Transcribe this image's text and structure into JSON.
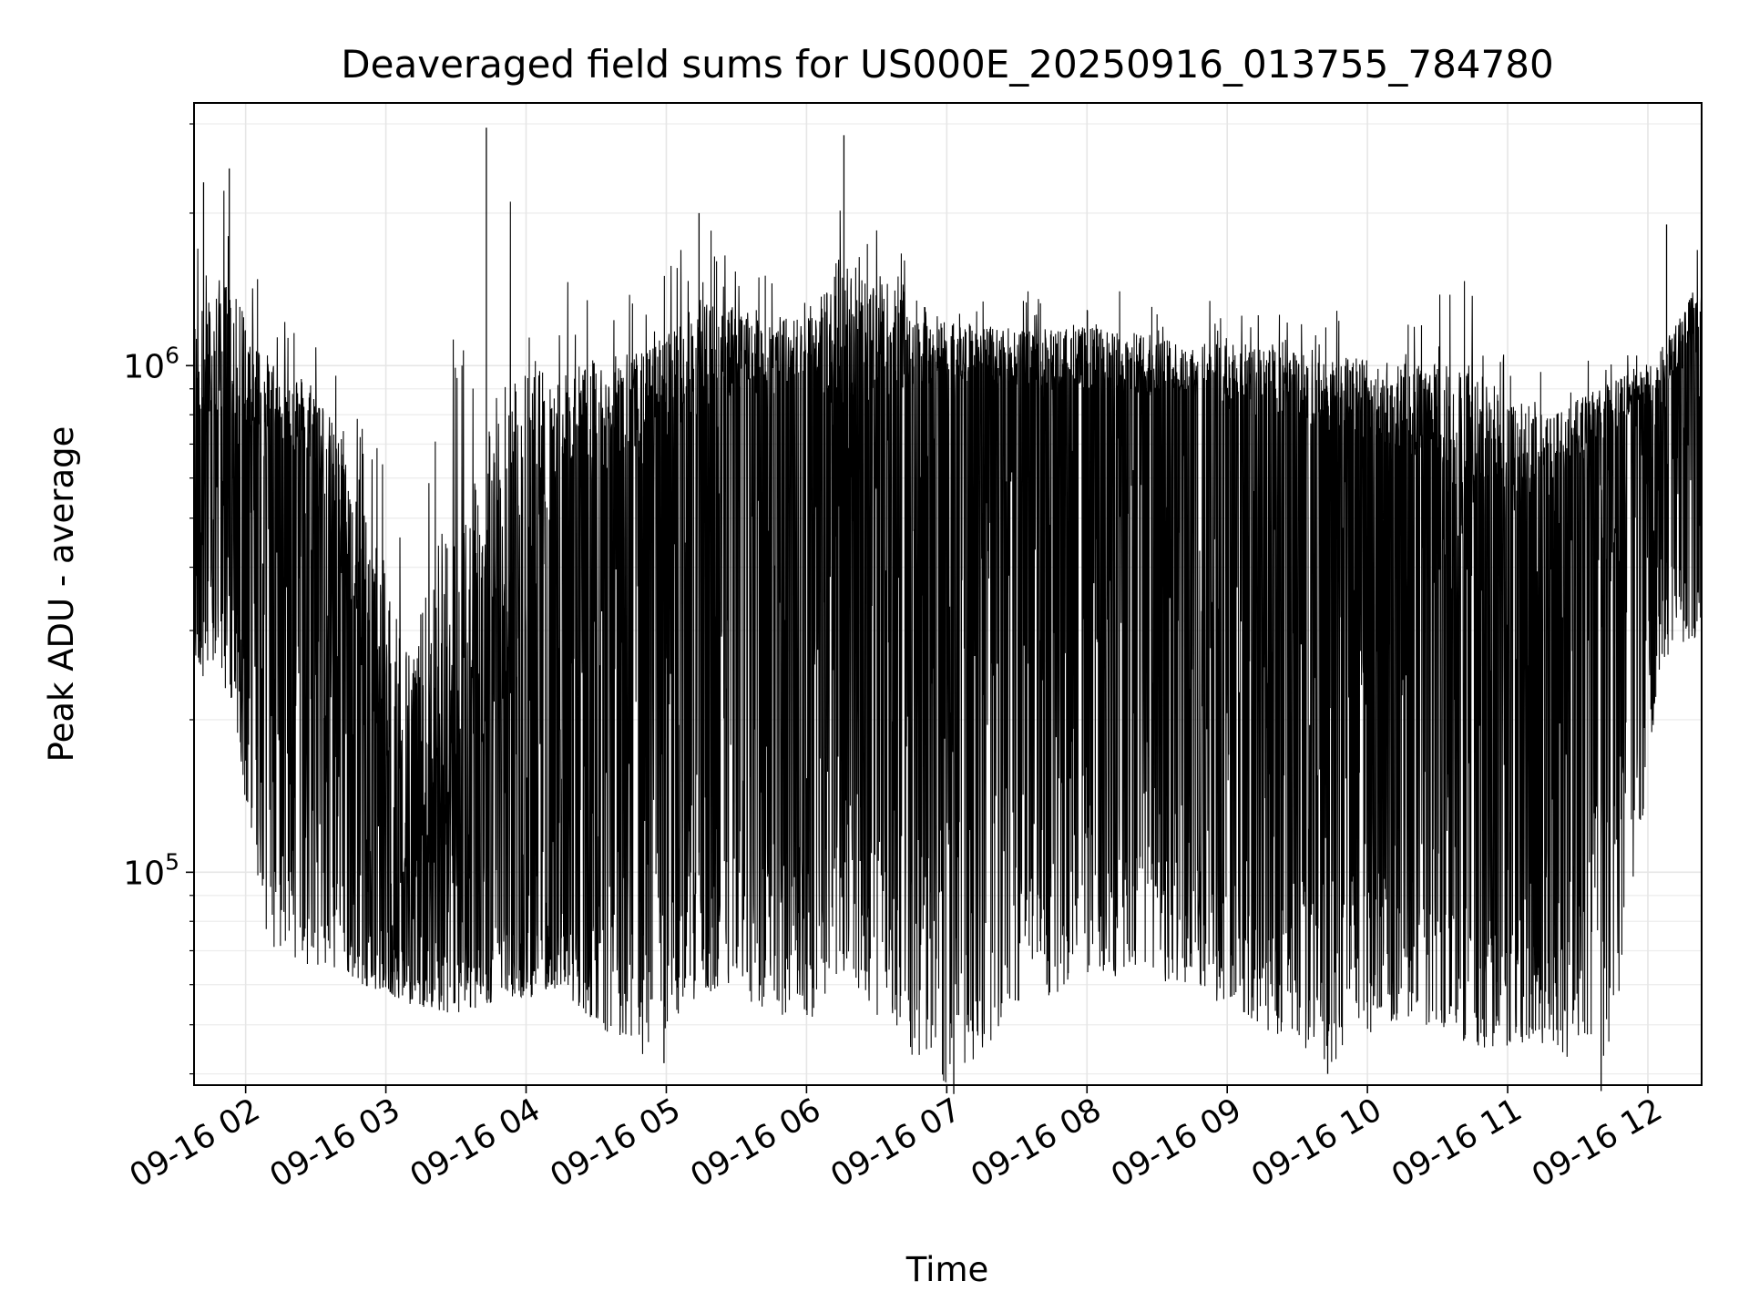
{
  "chart_data": {
    "type": "line",
    "title": "Deaveraged field sums for US000E_20250916_013755_784780",
    "xlabel": "Time",
    "ylabel": "Peak ADU - average",
    "y_scale": "log",
    "ylim": [
      38000,
      3300000
    ],
    "xlim": [
      "2025-09-16 01:37:55",
      "2025-09-16 12:23:00"
    ],
    "x_ticks": [
      {
        "value": "2025-09-16 02:00",
        "label": "09-16 02"
      },
      {
        "value": "2025-09-16 03:00",
        "label": "09-16 03"
      },
      {
        "value": "2025-09-16 04:00",
        "label": "09-16 04"
      },
      {
        "value": "2025-09-16 05:00",
        "label": "09-16 05"
      },
      {
        "value": "2025-09-16 06:00",
        "label": "09-16 06"
      },
      {
        "value": "2025-09-16 07:00",
        "label": "09-16 07"
      },
      {
        "value": "2025-09-16 08:00",
        "label": "09-16 08"
      },
      {
        "value": "2025-09-16 09:00",
        "label": "09-16 09"
      },
      {
        "value": "2025-09-16 10:00",
        "label": "09-16 10"
      },
      {
        "value": "2025-09-16 11:00",
        "label": "09-16 11"
      },
      {
        "value": "2025-09-16 12:00",
        "label": "09-16 12"
      }
    ],
    "y_ticks": [
      {
        "value": 100000,
        "base": "10",
        "exp": "5"
      },
      {
        "value": 1000000,
        "base": "10",
        "exp": "6"
      }
    ],
    "grid": true,
    "line_color": "#000000",
    "envelope": [
      {
        "x": "2025-09-16 01:38",
        "high": 1800000,
        "typical_high": 900000,
        "typical_low": 450000,
        "low": 240000
      },
      {
        "x": "2025-09-16 01:50",
        "high": 2400000,
        "typical_high": 1000000,
        "typical_low": 400000,
        "low": 250000
      },
      {
        "x": "2025-09-16 02:10",
        "high": 1300000,
        "typical_high": 850000,
        "typical_low": 300000,
        "low": 70000
      },
      {
        "x": "2025-09-16 02:30",
        "high": 1200000,
        "typical_high": 750000,
        "typical_low": 150000,
        "low": 65000
      },
      {
        "x": "2025-09-16 02:50",
        "high": 900000,
        "typical_high": 350000,
        "typical_low": 85000,
        "low": 60000
      },
      {
        "x": "2025-09-16 03:10",
        "high": 600000,
        "typical_high": 150000,
        "typical_low": 75000,
        "low": 55000
      },
      {
        "x": "2025-09-16 03:30",
        "high": 1300000,
        "typical_high": 200000,
        "typical_low": 70000,
        "low": 52000
      },
      {
        "x": "2025-09-16 03:45",
        "high": 2800000,
        "typical_high": 350000,
        "typical_low": 75000,
        "low": 55000
      },
      {
        "x": "2025-09-16 04:15",
        "high": 1500000,
        "typical_high": 700000,
        "typical_low": 90000,
        "low": 58000
      },
      {
        "x": "2025-09-16 04:50",
        "high": 1450000,
        "typical_high": 800000,
        "typical_low": 95000,
        "low": 42000
      },
      {
        "x": "2025-09-16 05:15",
        "high": 1900000,
        "typical_high": 1000000,
        "typical_low": 110000,
        "low": 58000
      },
      {
        "x": "2025-09-16 06:00",
        "high": 1450000,
        "typical_high": 1050000,
        "typical_low": 140000,
        "low": 50000
      },
      {
        "x": "2025-09-16 06:15",
        "high": 2700000,
        "typical_high": 1100000,
        "typical_low": 160000,
        "low": 60000
      },
      {
        "x": "2025-09-16 07:00",
        "high": 1450000,
        "typical_high": 1050000,
        "typical_low": 160000,
        "low": 37000
      },
      {
        "x": "2025-09-16 07:30",
        "high": 1400000,
        "typical_high": 1000000,
        "typical_low": 170000,
        "low": 52000
      },
      {
        "x": "2025-09-16 08:00",
        "high": 1450000,
        "typical_high": 1000000,
        "typical_low": 180000,
        "low": 62000
      },
      {
        "x": "2025-09-16 08:45",
        "high": 1350000,
        "typical_high": 950000,
        "typical_low": 110000,
        "low": 60000
      },
      {
        "x": "2025-09-16 09:15",
        "high": 1350000,
        "typical_high": 900000,
        "typical_low": 100000,
        "low": 48000
      },
      {
        "x": "2025-09-16 09:45",
        "high": 1300000,
        "typical_high": 850000,
        "typical_low": 110000,
        "low": 42000
      },
      {
        "x": "2025-09-16 10:15",
        "high": 1300000,
        "typical_high": 800000,
        "typical_low": 110000,
        "low": 52000
      },
      {
        "x": "2025-09-16 10:45",
        "high": 1500000,
        "typical_high": 700000,
        "typical_low": 90000,
        "low": 45000
      },
      {
        "x": "2025-09-16 11:15",
        "high": 1000000,
        "typical_high": 650000,
        "typical_low": 75000,
        "low": 45000
      },
      {
        "x": "2025-09-16 11:45",
        "high": 1100000,
        "typical_high": 800000,
        "typical_low": 250000,
        "low": 40000
      },
      {
        "x": "2025-09-16 12:05",
        "high": 1200000,
        "typical_high": 950000,
        "typical_low": 450000,
        "low": 250000
      },
      {
        "x": "2025-09-16 12:23",
        "high": 1800000,
        "typical_high": 1300000,
        "typical_low": 400000,
        "low": 300000
      }
    ],
    "spikes": [
      {
        "x": "2025-09-16 01:42",
        "y": 2300000
      },
      {
        "x": "2025-09-16 01:53",
        "y": 2450000
      },
      {
        "x": "2025-09-16 03:43",
        "y": 2950000
      },
      {
        "x": "2025-09-16 05:14",
        "y": 2000000
      },
      {
        "x": "2025-09-16 06:16",
        "y": 2850000
      },
      {
        "x": "2025-09-16 12:08",
        "y": 1900000
      },
      {
        "x": "2025-09-16 04:59",
        "y": 42000
      },
      {
        "x": "2025-09-16 07:03",
        "y": 36500
      },
      {
        "x": "2025-09-16 09:43",
        "y": 40000
      },
      {
        "x": "2025-09-16 11:40",
        "y": 37000
      }
    ]
  }
}
